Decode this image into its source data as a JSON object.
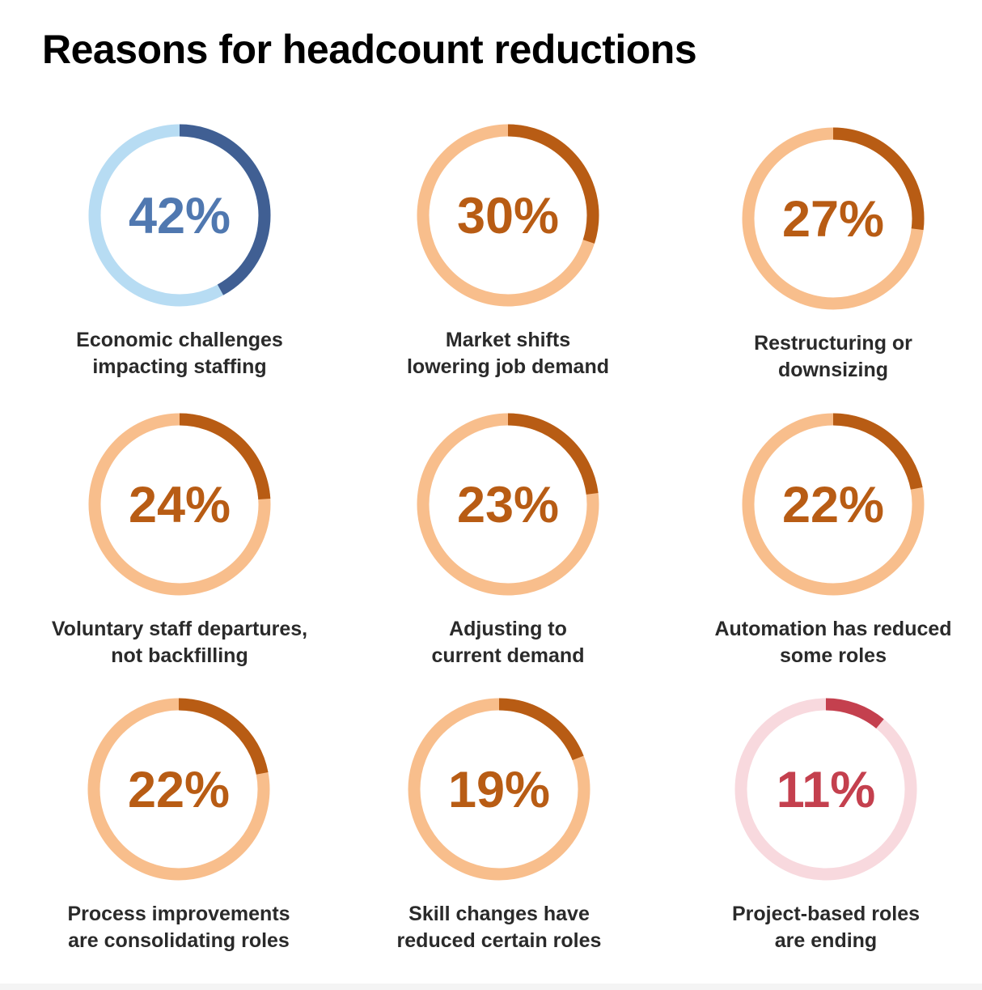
{
  "title": "Reasons for headcount reductions",
  "chart_data": [
    {
      "type": "pie",
      "value": 42,
      "label": "42%",
      "caption": [
        "Economic challenges",
        "impacting staffing"
      ],
      "color": "#405f93",
      "track_color": "#b7dcf3",
      "text_color": "#5078b0"
    },
    {
      "type": "pie",
      "value": 30,
      "label": "30%",
      "caption": [
        "Market shifts",
        "lowering job demand"
      ],
      "color": "#b85c14",
      "track_color": "#f8be8c",
      "text_color": "#b85c14"
    },
    {
      "type": "pie",
      "value": 27,
      "label": "27%",
      "caption": [
        "Restructuring or",
        "downsizing"
      ],
      "color": "#b85c14",
      "track_color": "#f8be8c",
      "text_color": "#b85c14"
    },
    {
      "type": "pie",
      "value": 24,
      "label": "24%",
      "caption": [
        "Voluntary staff departures,",
        "not backfilling"
      ],
      "color": "#b85c14",
      "track_color": "#f8be8c",
      "text_color": "#b85c14"
    },
    {
      "type": "pie",
      "value": 23,
      "label": "23%",
      "caption": [
        "Adjusting to",
        "current demand"
      ],
      "color": "#b85c14",
      "track_color": "#f8be8c",
      "text_color": "#b85c14"
    },
    {
      "type": "pie",
      "value": 22,
      "label": "22%",
      "caption": [
        "Automation has reduced",
        "some roles"
      ],
      "color": "#b85c14",
      "track_color": "#f8be8c",
      "text_color": "#b85c14"
    },
    {
      "type": "pie",
      "value": 22,
      "label": "22%",
      "caption": [
        "Process improvements",
        "are consolidating roles"
      ],
      "color": "#b85c14",
      "track_color": "#f8be8c",
      "text_color": "#b85c14"
    },
    {
      "type": "pie",
      "value": 19,
      "label": "19%",
      "caption": [
        "Skill changes have",
        "reduced certain roles"
      ],
      "color": "#b85c14",
      "track_color": "#f8be8c",
      "text_color": "#b85c14"
    },
    {
      "type": "pie",
      "value": 11,
      "label": "11%",
      "caption": [
        "Project-based roles",
        "are ending"
      ],
      "color": "#c4404e",
      "track_color": "#f8d9de",
      "text_color": "#c4404e"
    }
  ]
}
